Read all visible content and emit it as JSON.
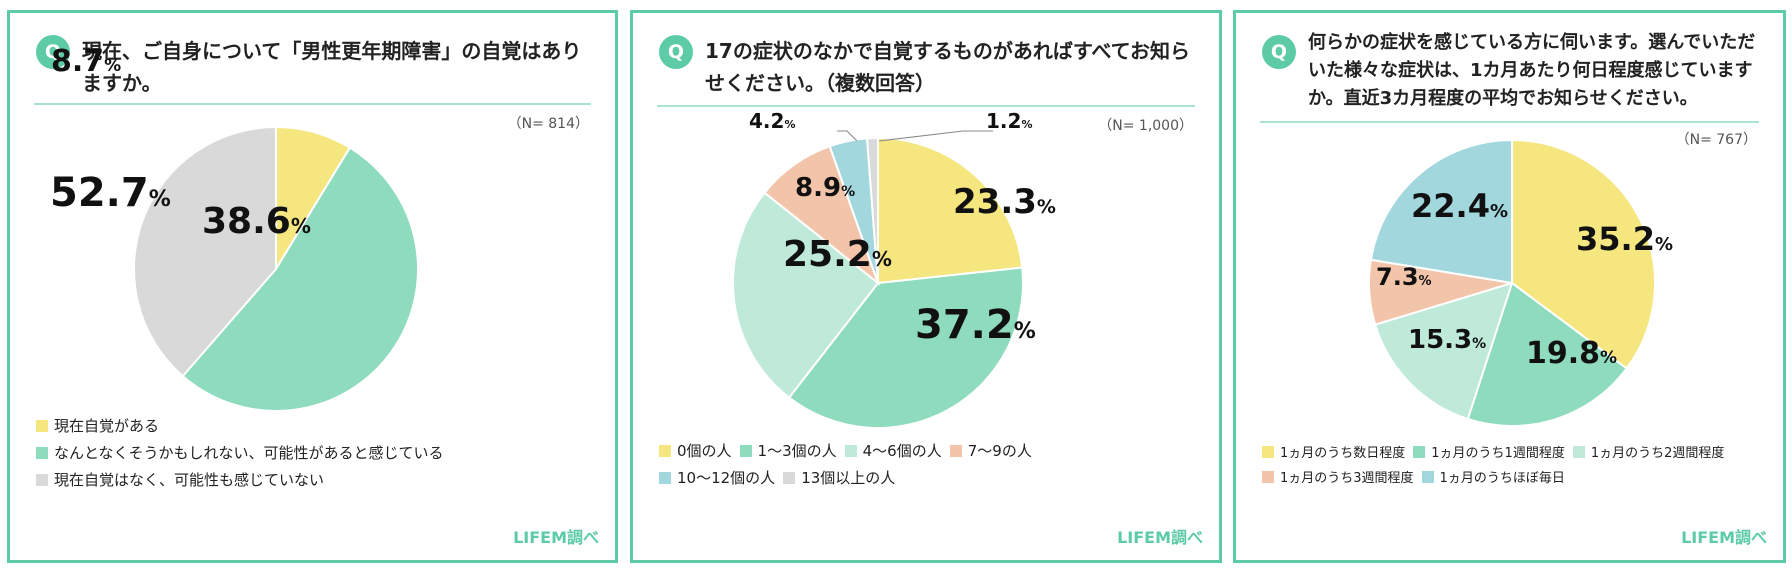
{
  "credit": "LIFEM調べ",
  "q_icon": "Q",
  "colors": {
    "border": "#5ccba6",
    "yellow": "#f5e680",
    "green": "#8edbbd",
    "lightgreen": "#bfe9d8",
    "salmon": "#f2c4a9",
    "blue": "#a3d7de",
    "gray": "#d9d9d9",
    "text": "#222222"
  },
  "panels": [
    {
      "question": "現在、ご自身について「男性更年期障害」の自覚はありますか。",
      "n": "（N= 814）"
    },
    {
      "question": "17の症状のなかで自覚するものがあればすべてお知らせください。（複数回答）",
      "n": "（N= 1,000）"
    },
    {
      "question": "何らかの症状を感じている方に伺います。選んでいただいた様々な症状は、1カ月あたり何日程度感じていますか。直近3カ月程度の平均でお知らせください。",
      "n": "（N= 767）"
    }
  ],
  "chart_data": [
    {
      "type": "pie",
      "categories": [
        "現在自覚がある",
        "なんとなくそうかもしれない、可能性があると感じている",
        "現在自覚はなく、可能性も感じていない"
      ],
      "values": [
        8.7,
        52.7,
        38.6
      ],
      "labels": [
        "8.7",
        "52.7",
        "38.6"
      ],
      "unit": "%",
      "colors": [
        "#f5e680",
        "#8edbbd",
        "#d9d9d9"
      ]
    },
    {
      "type": "pie",
      "categories": [
        "0個の人",
        "1～3個の人",
        "4～6個の人",
        "7～9の人",
        "10～12個の人",
        "13個以上の人"
      ],
      "values": [
        23.3,
        37.2,
        25.2,
        8.9,
        4.2,
        1.2
      ],
      "labels": [
        "23.3",
        "37.2",
        "25.2",
        "8.9",
        "4.2",
        "1.2"
      ],
      "unit": "%",
      "colors": [
        "#f5e680",
        "#8edbbd",
        "#bfe9d8",
        "#f2c4a9",
        "#a3d7de",
        "#d9d9d9"
      ]
    },
    {
      "type": "pie",
      "categories": [
        "1ヵ月のうち数日程度",
        "1ヵ月のうち1週間程度",
        "1ヵ月のうち2週間程度",
        "1ヵ月のうち3週間程度",
        "1ヵ月のうちほぼ毎日"
      ],
      "values": [
        35.2,
        19.8,
        15.3,
        7.3,
        22.4
      ],
      "labels": [
        "35.2",
        "19.8",
        "15.3",
        "7.3",
        "22.4"
      ],
      "unit": "%",
      "colors": [
        "#f5e680",
        "#8edbbd",
        "#bfe9d8",
        "#f2c4a9",
        "#a3d7de"
      ]
    }
  ]
}
